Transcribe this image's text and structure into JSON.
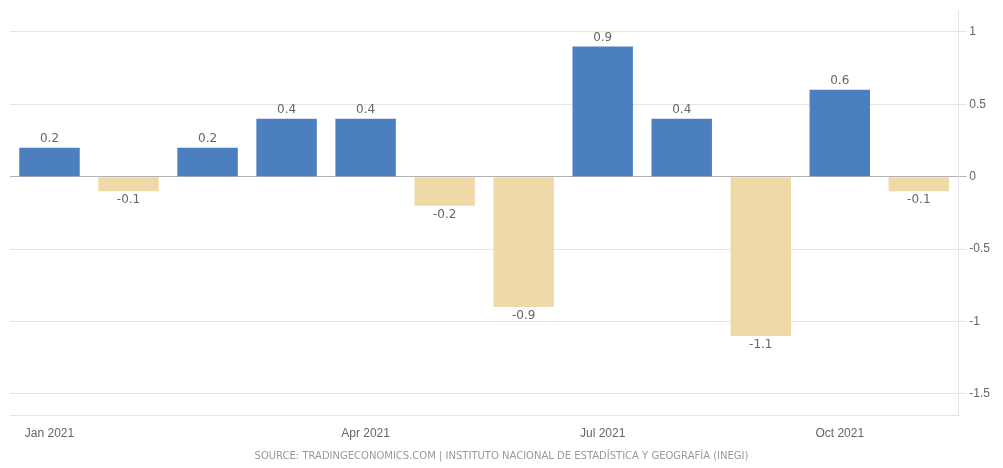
{
  "chart_data": {
    "type": "bar",
    "categories": [
      "Jan 2021",
      null,
      null,
      null,
      "Apr 2021",
      null,
      null,
      "Jul 2021",
      null,
      null,
      "Oct 2021",
      null
    ],
    "values": [
      0.2,
      -0.1,
      0.2,
      0.4,
      0.4,
      -0.2,
      -0.9,
      0.9,
      0.4,
      -1.1,
      0.6,
      -0.1
    ],
    "colors": [
      "#4C7FC0",
      "#F0D9A8",
      "#4C7FC0",
      "#4C7FC0",
      "#4C7FC0",
      "#F0D9A8",
      "#F0D9A8",
      "#4C7FC0",
      "#4C7FC0",
      "#F0D9A8",
      "#4C7FC0",
      "#F0D9A8"
    ],
    "ylim": [
      -1.65,
      1.15
    ],
    "yticks": [
      -1.5,
      -1,
      -0.5,
      0,
      0.5,
      1
    ],
    "grid": true,
    "data_labels": true,
    "annotations": [
      "SOURCE: TRADINGECONOMICS.COM | INSTITUTO NACIONAL DE ESTADÍSTICA Y GEOGRAFÍA (INEGI)"
    ]
  }
}
